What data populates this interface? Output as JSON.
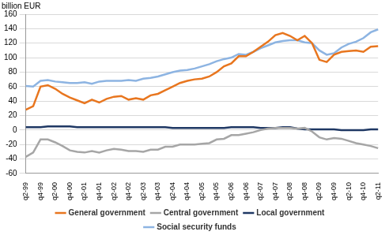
{
  "chart_data": {
    "type": "line",
    "y_label": "billion EUR",
    "categories": [
      "q2-99",
      null,
      "q4-99",
      null,
      "q2-00",
      null,
      "q4-00",
      null,
      "q2-01",
      null,
      "q4-01",
      null,
      "q2-02",
      null,
      "q4-02",
      null,
      "q2-03",
      null,
      "q4-03",
      null,
      "q2-04",
      null,
      "q4-04",
      null,
      "q2-05",
      null,
      "q4-05",
      null,
      "q2-06",
      null,
      "q4-06",
      null,
      "q2-07",
      null,
      "q4-07",
      null,
      "q2-08",
      null,
      "q4-08",
      null,
      "q2-09",
      null,
      "q4-09",
      null,
      "q2-10",
      null,
      "q4-10",
      null,
      "q2-11"
    ],
    "series": [
      {
        "name": "General government",
        "color": "#e8761f",
        "values": [
          28,
          33,
          60,
          62,
          57,
          50,
          45,
          41,
          37,
          42,
          38,
          43,
          46,
          47,
          42,
          44,
          42,
          48,
          50,
          55,
          60,
          65,
          68,
          70,
          71,
          74,
          80,
          88,
          92,
          102,
          102,
          108,
          115,
          122,
          131,
          134,
          130,
          124,
          130,
          120,
          97,
          94,
          104,
          108,
          109,
          110,
          108,
          115,
          116
        ]
      },
      {
        "name": "Central government",
        "color": "#a6a6a6",
        "values": [
          -37,
          -31,
          -13,
          -13,
          -17,
          -22,
          -28,
          -30,
          -31,
          -29,
          -31,
          -28,
          -26,
          -27,
          -29,
          -29,
          -30,
          -27,
          -27,
          -23,
          -23,
          -20,
          -20,
          -20,
          -19,
          -18,
          -13,
          -12,
          -7,
          -7,
          -5,
          -3,
          0,
          2,
          3,
          3,
          3,
          2,
          3,
          -2,
          -10,
          -13,
          -11,
          -12,
          -15,
          -18,
          -20,
          -22,
          -25
        ]
      },
      {
        "name": "Local government",
        "color": "#1f3864",
        "values": [
          4,
          4,
          4,
          5,
          5,
          5,
          5,
          4,
          4,
          4,
          4,
          4,
          4,
          4,
          4,
          4,
          4,
          4,
          4,
          4,
          3,
          3,
          3,
          3,
          3,
          3,
          3,
          3,
          4,
          4,
          4,
          4,
          3,
          3,
          3,
          4,
          4,
          2,
          1,
          1,
          1,
          1,
          1,
          0,
          0,
          0,
          0,
          1,
          1
        ]
      },
      {
        "name": "Social security funds",
        "color": "#8db4e2",
        "values": [
          61,
          60,
          68,
          69,
          67,
          66,
          65,
          65,
          66,
          64,
          67,
          68,
          68,
          68,
          69,
          68,
          71,
          72,
          74,
          77,
          80,
          82,
          83,
          85,
          88,
          91,
          95,
          98,
          100,
          105,
          104,
          108,
          113,
          117,
          121,
          123,
          124,
          124,
          121,
          120,
          110,
          104,
          106,
          114,
          119,
          122,
          127,
          135,
          139
        ]
      }
    ],
    "ylim": [
      -60,
      160
    ],
    "yticks": [
      -60,
      -40,
      -20,
      0,
      20,
      40,
      60,
      80,
      100,
      120,
      140,
      160
    ],
    "grid": true,
    "legend": "bottom"
  }
}
